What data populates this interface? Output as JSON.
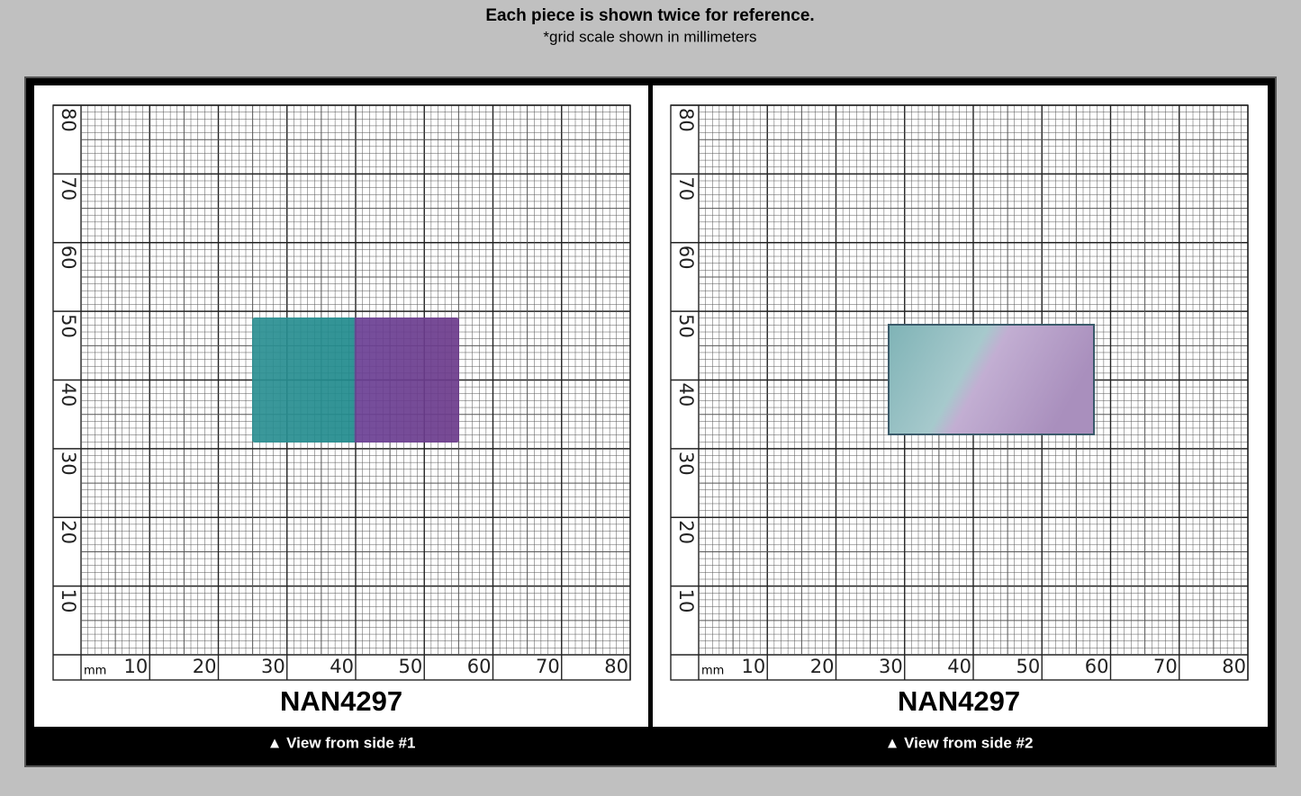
{
  "header": {
    "title": "Each piece is shown twice for reference.",
    "subtitle": "*grid scale shown in millimeters"
  },
  "panels": [
    {
      "unit": "mm",
      "x_labels": [
        10,
        20,
        30,
        40,
        50,
        60,
        70,
        80
      ],
      "y_labels": [
        10,
        20,
        30,
        40,
        50,
        60,
        70,
        80
      ],
      "label": "NAN4297",
      "caption": "▲ View from side #1"
    },
    {
      "unit": "mm",
      "x_labels": [
        10,
        20,
        30,
        40,
        50,
        60,
        70,
        80
      ],
      "y_labels": [
        10,
        20,
        30,
        40,
        50,
        60,
        70,
        80
      ],
      "label": "NAN4297",
      "caption": "▲ View from side #2"
    }
  ]
}
